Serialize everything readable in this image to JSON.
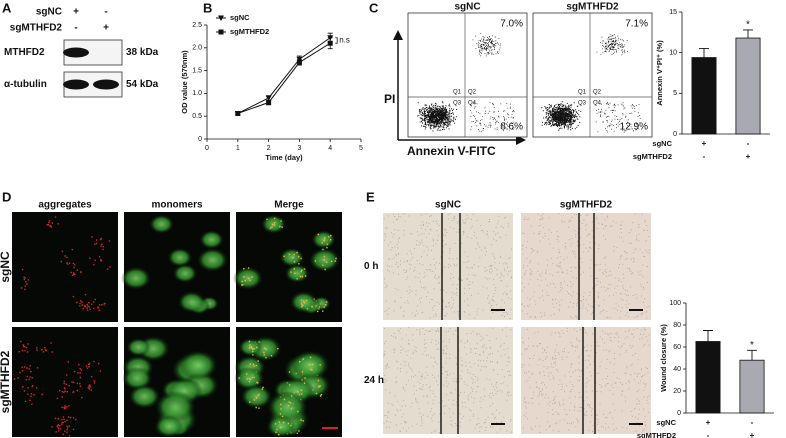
{
  "panel_labels": [
    "A",
    "B",
    "C",
    "D",
    "E"
  ],
  "blot": {
    "conditions": [
      {
        "name": "sgNC",
        "marks": [
          "+",
          "-"
        ]
      },
      {
        "name": "sgMTHFD2",
        "marks": [
          "-",
          "+"
        ]
      }
    ],
    "bands": [
      {
        "name": "MTHFD2",
        "size": "38 kDa"
      },
      {
        "name": "α-tubulin",
        "size": "54 kDa"
      }
    ]
  },
  "flow": {
    "samples": [
      {
        "name": "sgNC",
        "upper_right": "7.0%",
        "lower_right": "8.6%"
      },
      {
        "name": "sgMTHFD2",
        "upper_right": "7.1%",
        "lower_right": "12.9%"
      }
    ],
    "quadrants": [
      "Q1",
      "Q2",
      "Q3",
      "Q4"
    ],
    "y_label": "PI",
    "x_label": "Annexin V-FITC"
  },
  "staining": {
    "columns": [
      "aggregates",
      "monomers",
      "Merge"
    ],
    "rows": [
      "sgNC",
      "sgMTHFD2"
    ]
  },
  "wound": {
    "columns": [
      "sgNC",
      "sgMTHFD2"
    ],
    "rows": [
      "0 h",
      "24 h"
    ]
  },
  "chart_data": [
    {
      "type": "line",
      "x_label": "Time (day)",
      "y_label": "OD value (570nm)",
      "annotation": "n.s",
      "x": [
        1,
        2,
        3,
        4
      ],
      "xlim": [
        0,
        5
      ],
      "xticks": [
        0,
        1,
        2,
        3,
        4,
        5
      ],
      "ylim": [
        0,
        2.5
      ],
      "yticks": [
        0,
        0.5,
        {
          "value": 1,
          "label": "1.0"
        },
        1.5,
        {
          "value": 2,
          "label": "2.0"
        },
        2.5
      ],
      "series": [
        {
          "name": "sgNC",
          "color": "#111111",
          "marker": "triangle",
          "values": [
            0.56,
            0.9,
            1.75,
            2.22
          ],
          "errors": [
            0.03,
            0.05,
            0.07,
            0.1
          ]
        },
        {
          "name": "sgMTHFD2",
          "color": "#111111",
          "marker": "square",
          "values": [
            0.56,
            0.8,
            1.68,
            2.1
          ],
          "errors": [
            0.03,
            0.05,
            0.06,
            0.12
          ]
        }
      ]
    },
    {
      "type": "bar",
      "y_label": "Annexin V⁺PI⁺ (%)",
      "annotation": "*",
      "conditions": [
        {
          "name": "sgNC",
          "marks": [
            "+",
            "-"
          ]
        },
        {
          "name": "sgMTHFD2",
          "marks": [
            "-",
            "+"
          ]
        }
      ],
      "values": [
        9.4,
        11.8
      ],
      "errors": [
        1.1,
        1.0
      ],
      "colors": [
        "#111111",
        "#a9a9b1"
      ],
      "ylim": [
        0,
        15
      ],
      "yticks": [
        0,
        5,
        10,
        15
      ]
    },
    {
      "type": "bar",
      "y_label": "Wound closure (%)",
      "annotation": "*",
      "conditions": [
        {
          "name": "sgNC",
          "marks": [
            "+",
            "-"
          ]
        },
        {
          "name": "sgMTHFD2",
          "marks": [
            "-",
            "+"
          ]
        }
      ],
      "values": [
        65,
        48
      ],
      "errors": [
        10,
        9
      ],
      "colors": [
        "#111111",
        "#a9a9b1"
      ],
      "ylim": [
        0,
        100
      ],
      "yticks": [
        0,
        20,
        40,
        60,
        80,
        100
      ]
    }
  ]
}
